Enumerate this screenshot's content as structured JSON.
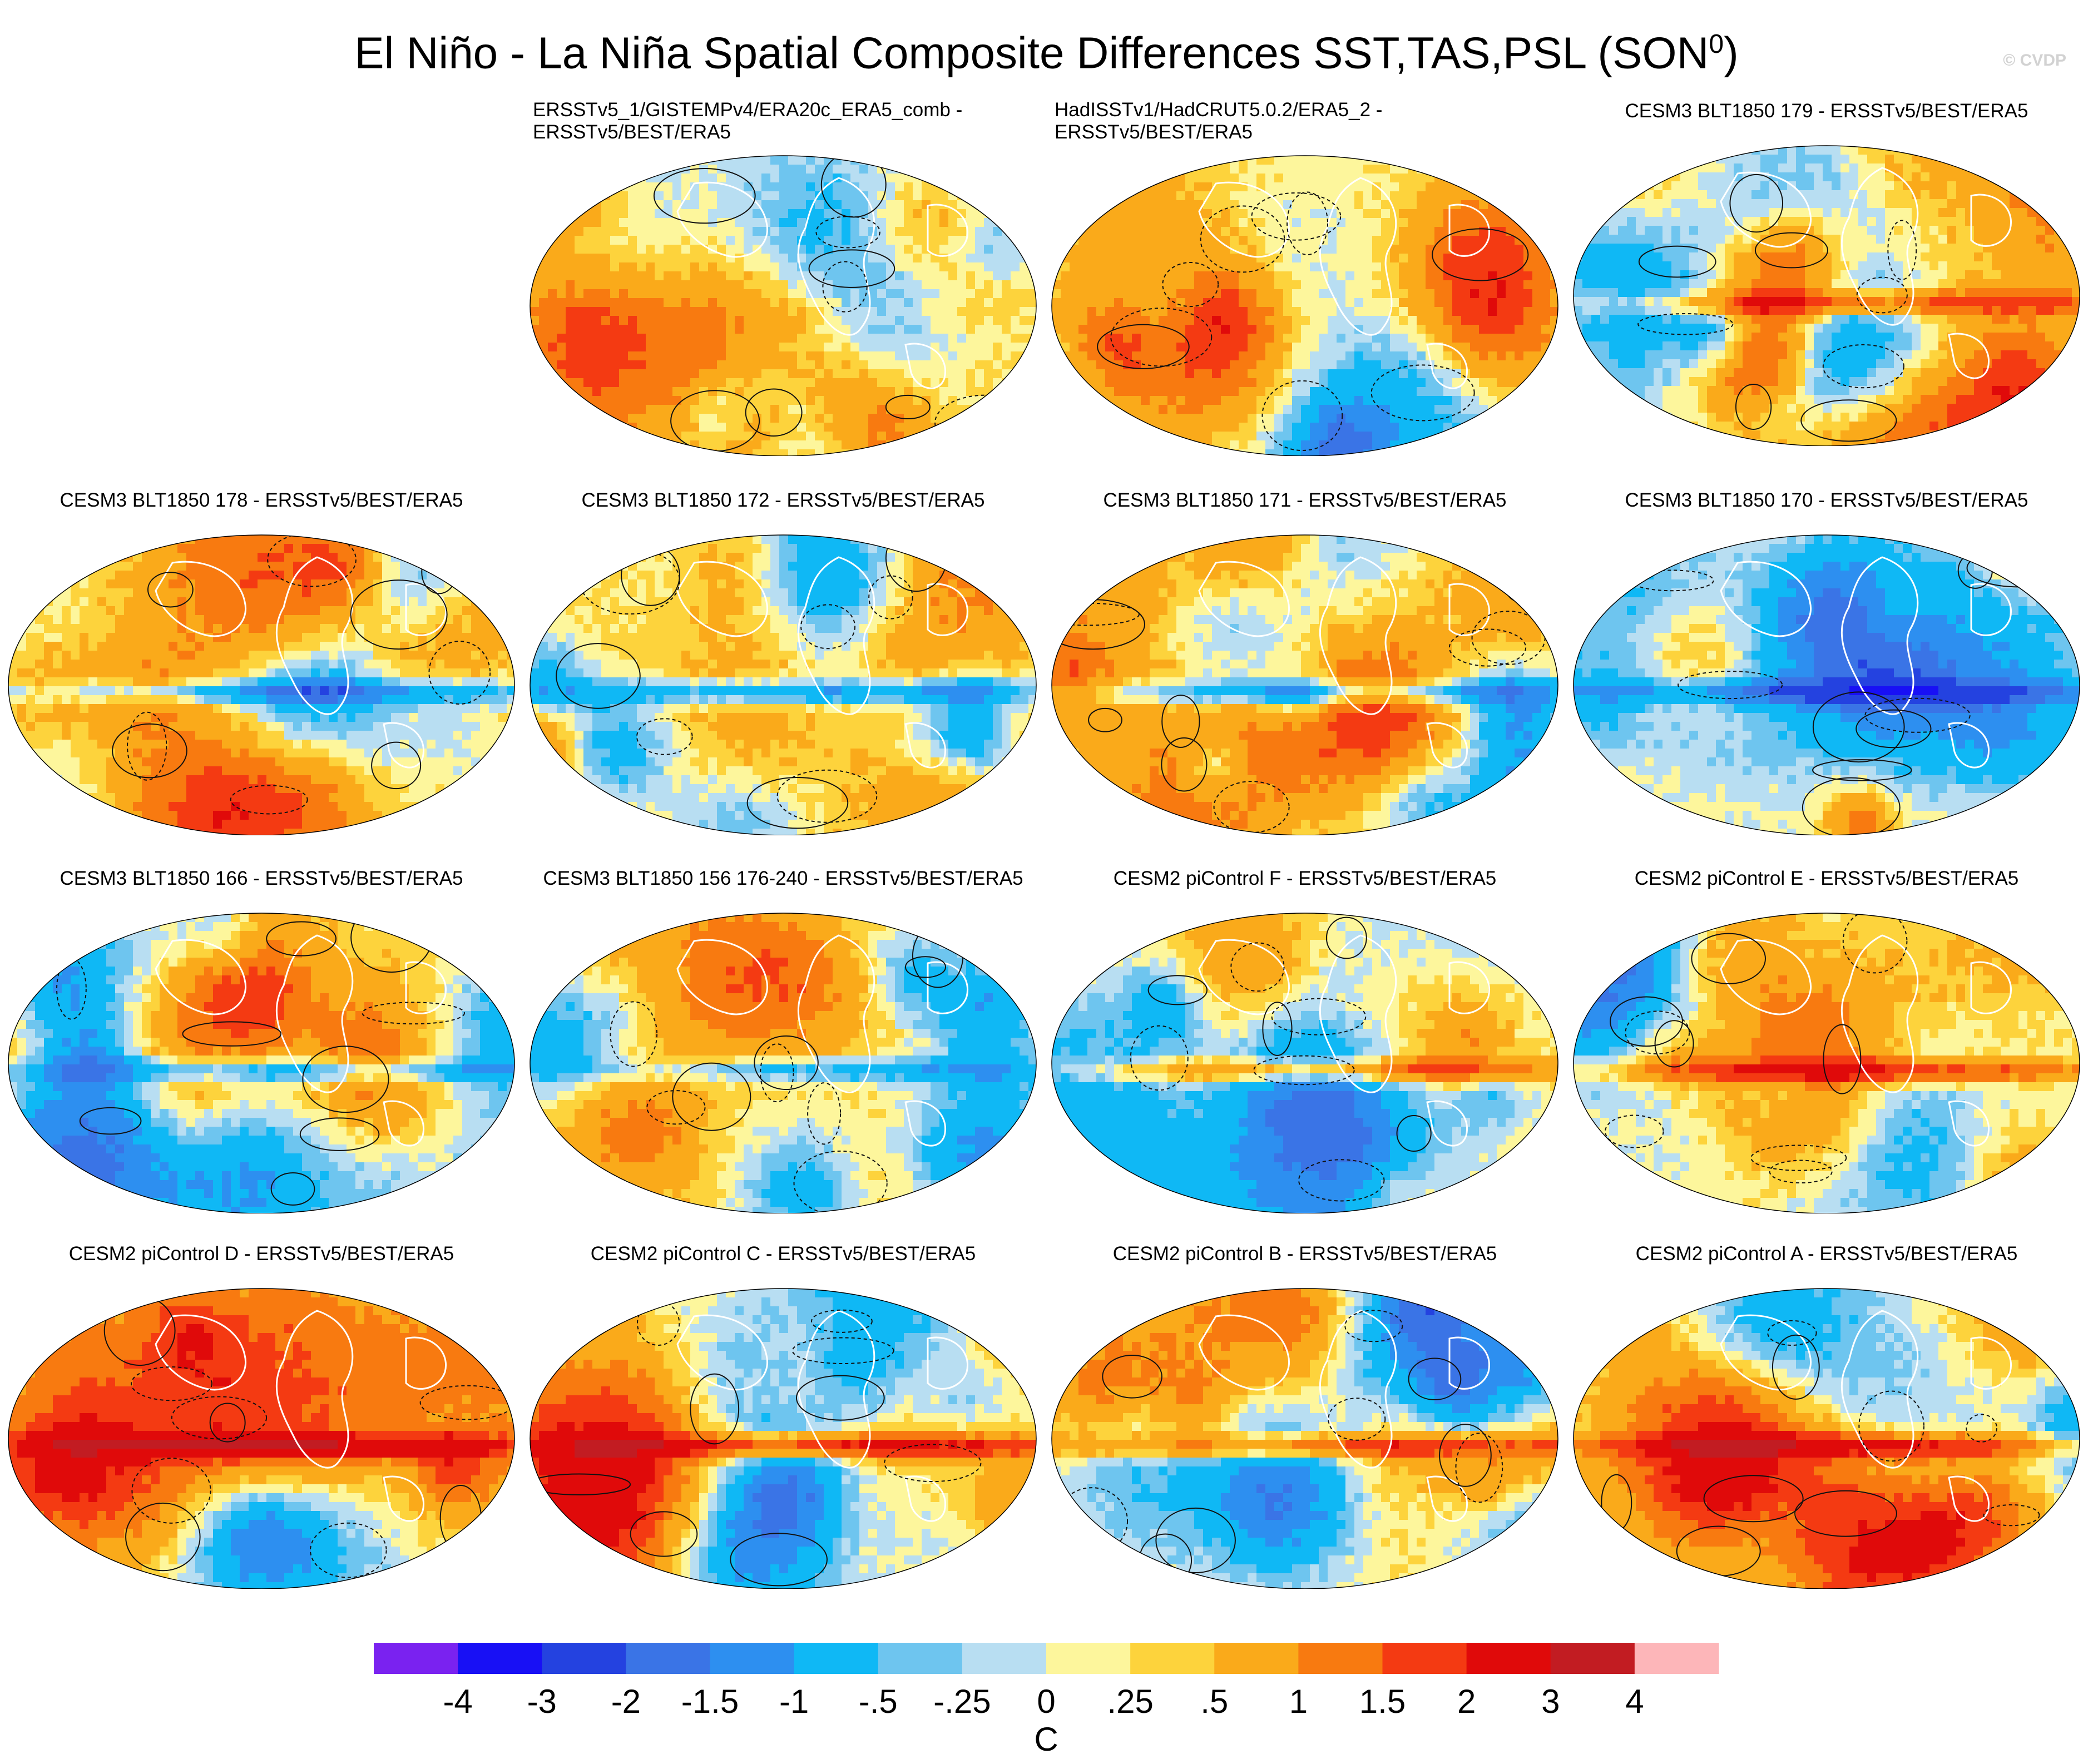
{
  "title": {
    "main": "El Niño - La Niña Spatial Composite Differences SST,TAS,PSL (SON",
    "sup": "0",
    "close": ")"
  },
  "watermark": "© CVDP",
  "panels": [
    {
      "id": "p1",
      "lines": [
        "ERSSTv5_1/GISTEMPv4/ERA20c_ERA5_comb -",
        "ERSSTv5/BEST/ERA5"
      ],
      "seed": 11,
      "enso": 0.15
    },
    {
      "id": "p2",
      "lines": [
        "HadISSTv1/HadCRUT5.0.2/ERA5_2 -",
        "ERSSTv5/BEST/ERA5"
      ],
      "seed": 23,
      "enso": 0.05
    },
    {
      "id": "p3",
      "lines": [
        "CESM3 BLT1850 179 - ERSSTv5/BEST/ERA5"
      ],
      "seed": 37,
      "enso": 1.5
    },
    {
      "id": "p4",
      "lines": [
        "CESM3 BLT1850 178 - ERSSTv5/BEST/ERA5"
      ],
      "seed": 41,
      "enso": -1.4
    },
    {
      "id": "p5",
      "lines": [
        "CESM3 BLT1850 172 - ERSSTv5/BEST/ERA5"
      ],
      "seed": 53,
      "enso": -1.4
    },
    {
      "id": "p6",
      "lines": [
        "CESM3 BLT1850 171 - ERSSTv5/BEST/ERA5"
      ],
      "seed": 67,
      "enso": -1.5
    },
    {
      "id": "p7",
      "lines": [
        "CESM3 BLT1850 170 - ERSSTv5/BEST/ERA5"
      ],
      "seed": 71,
      "enso": -1.5
    },
    {
      "id": "p8",
      "lines": [
        "CESM3 BLT1850 166 - ERSSTv5/BEST/ERA5"
      ],
      "seed": 83,
      "enso": -1.3
    },
    {
      "id": "p9",
      "lines": [
        "CESM3 BLT1850 156 176-240 - ERSSTv5/BEST/ERA5"
      ],
      "seed": 97,
      "enso": -1.0
    },
    {
      "id": "p10",
      "lines": [
        "CESM2 piControl F - ERSSTv5/BEST/ERA5"
      ],
      "seed": 101,
      "enso": 1.6
    },
    {
      "id": "p11",
      "lines": [
        "CESM2 piControl E - ERSSTv5/BEST/ERA5"
      ],
      "seed": 113,
      "enso": 1.8
    },
    {
      "id": "p12",
      "lines": [
        "CESM2 piControl D - ERSSTv5/BEST/ERA5"
      ],
      "seed": 127,
      "enso": 1.9
    },
    {
      "id": "p13",
      "lines": [
        "CESM2 piControl C - ERSSTv5/BEST/ERA5"
      ],
      "seed": 131,
      "enso": 2.2
    },
    {
      "id": "p14",
      "lines": [
        "CESM2 piControl B - ERSSTv5/BEST/ERA5"
      ],
      "seed": 149,
      "enso": 1.7
    },
    {
      "id": "p15",
      "lines": [
        "CESM2 piControl A - ERSSTv5/BEST/ERA5"
      ],
      "seed": 157,
      "enso": 1.8
    }
  ],
  "colorbar": {
    "colors": [
      "#7a22f0",
      "#1810f5",
      "#2442e0",
      "#3a74e6",
      "#2d8ff0",
      "#0fb8f5",
      "#6ec5ef",
      "#b8def2",
      "#fdf69c",
      "#fdd33c",
      "#faaa1a",
      "#f87a10",
      "#f43a12",
      "#e00a0a",
      "#c21c22",
      "#fdb6b9"
    ],
    "labels": [
      "-4",
      "-3",
      "-2",
      "-1.5",
      "-1",
      "-.5",
      "-.25",
      "0",
      ".25",
      ".5",
      "1",
      "1.5",
      "2",
      "3",
      "4"
    ],
    "units": "C"
  }
}
